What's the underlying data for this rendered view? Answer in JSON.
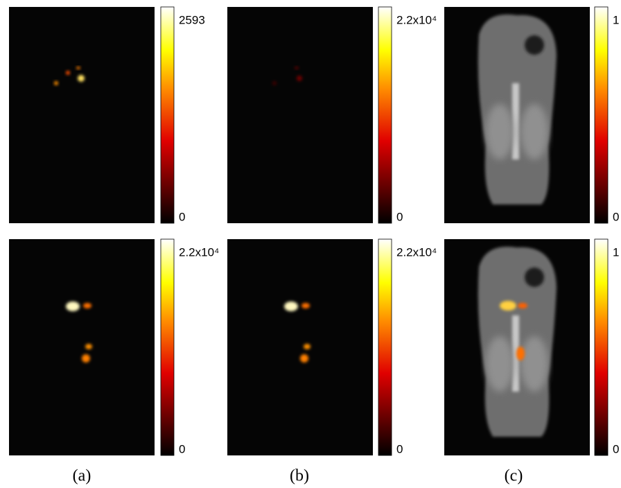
{
  "panels": [
    {
      "colorbar_max": "2593",
      "colorbar_min": "0"
    },
    {
      "colorbar_max": "2.2x10⁴",
      "colorbar_min": "0"
    },
    {
      "colorbar_max": "1",
      "colorbar_min": "0"
    },
    {
      "colorbar_max": "2.2x10⁴",
      "colorbar_min": "0"
    },
    {
      "colorbar_max": "2.2x10⁴",
      "colorbar_min": "0"
    },
    {
      "colorbar_max": "1",
      "colorbar_min": "0"
    }
  ],
  "captions": [
    "(a)",
    "(b)",
    "(c)"
  ]
}
